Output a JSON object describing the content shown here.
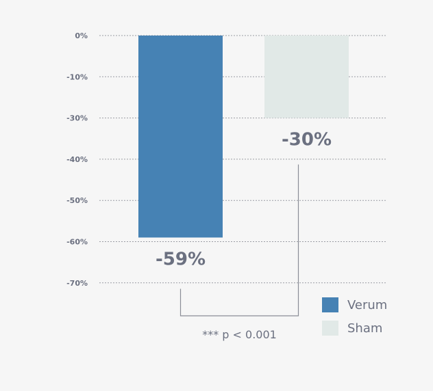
{
  "chart_data": {
    "type": "bar",
    "title": "",
    "xlabel": "",
    "ylabel": "",
    "categories": [
      "Verum",
      "Sham"
    ],
    "values": [
      -59,
      -30
    ],
    "data_labels": [
      "-59%",
      "-30%"
    ],
    "colors": [
      "#4682b4",
      "#e1e9e7"
    ],
    "y_ticks": [
      {
        "value": 0,
        "label": "0%"
      },
      {
        "value": -10,
        "label": "-10%"
      },
      {
        "value": -30,
        "label": "-30%"
      },
      {
        "value": -40,
        "label": "-40%"
      },
      {
        "value": -50,
        "label": "-50%"
      },
      {
        "value": -60,
        "label": "-60%"
      },
      {
        "value": -70,
        "label": "-70%"
      }
    ],
    "grid": true,
    "legend": {
      "position": "bottom-right",
      "entries": [
        {
          "label": "Verum",
          "color": "#4682b4"
        },
        {
          "label": "Sham",
          "color": "#e1e9e7"
        }
      ]
    },
    "annotation": "*** p < 0.001"
  }
}
